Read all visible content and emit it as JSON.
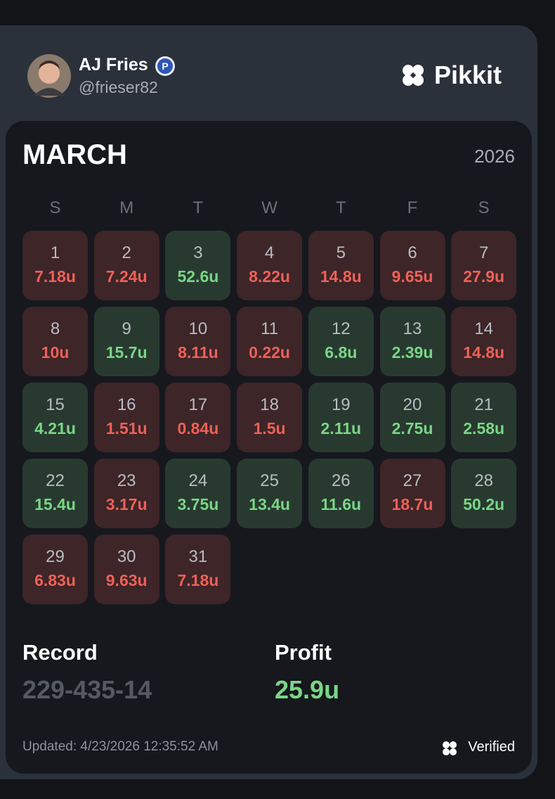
{
  "header": {
    "name": "AJ Fries",
    "handle": "@frieser82",
    "brand": "Pikkit"
  },
  "calendar": {
    "month": "MARCH",
    "year": "2026",
    "weekdays": [
      "S",
      "M",
      "T",
      "W",
      "T",
      "F",
      "S"
    ],
    "days": [
      {
        "day": 1,
        "amount": "7.18u",
        "color": "#ee6158"
      },
      {
        "day": 2,
        "amount": "7.24u",
        "color": "#ee6158"
      },
      {
        "day": 3,
        "amount": "52.6u",
        "color": "#7ad686"
      },
      {
        "day": 4,
        "amount": "8.22u",
        "color": "#ee6158"
      },
      {
        "day": 5,
        "amount": "14.8u",
        "color": "#ee6158"
      },
      {
        "day": 6,
        "amount": "9.65u",
        "color": "#ee6158"
      },
      {
        "day": 7,
        "amount": "27.9u",
        "color": "#ee6158"
      },
      {
        "day": 8,
        "amount": "10u",
        "color": "#ee6158"
      },
      {
        "day": 9,
        "amount": "15.7u",
        "color": "#7ad686"
      },
      {
        "day": 10,
        "amount": "8.11u",
        "color": "#ee6158"
      },
      {
        "day": 11,
        "amount": "0.22u",
        "color": "#ee6158"
      },
      {
        "day": 12,
        "amount": "6.8u",
        "color": "#7ad686"
      },
      {
        "day": 13,
        "amount": "2.39u",
        "color": "#7ad686"
      },
      {
        "day": 14,
        "amount": "14.8u",
        "color": "#ee6158"
      },
      {
        "day": 15,
        "amount": "4.21u",
        "color": "#7ad686"
      },
      {
        "day": 16,
        "amount": "1.51u",
        "color": "#ee6158"
      },
      {
        "day": 17,
        "amount": "0.84u",
        "color": "#ee6158"
      },
      {
        "day": 18,
        "amount": "1.5u",
        "color": "#ee6158"
      },
      {
        "day": 19,
        "amount": "2.11u",
        "color": "#7ad686"
      },
      {
        "day": 20,
        "amount": "2.75u",
        "color": "#7ad686"
      },
      {
        "day": 21,
        "amount": "2.58u",
        "color": "#7ad686"
      },
      {
        "day": 22,
        "amount": "15.4u",
        "color": "#7ad686"
      },
      {
        "day": 23,
        "amount": "3.17u",
        "color": "#ee6158"
      },
      {
        "day": 24,
        "amount": "3.75u",
        "color": "#7ad686"
      },
      {
        "day": 25,
        "amount": "13.4u",
        "color": "#7ad686"
      },
      {
        "day": 26,
        "amount": "11.6u",
        "color": "#7ad686"
      },
      {
        "day": 27,
        "amount": "18.7u",
        "color": "#ee6158"
      },
      {
        "day": 28,
        "amount": "50.2u",
        "color": "#7ad686"
      },
      {
        "day": 29,
        "amount": "6.83u",
        "color": "#ee6158"
      },
      {
        "day": 30,
        "amount": "9.63u",
        "color": "#ee6158"
      },
      {
        "day": 31,
        "amount": "7.18u",
        "color": "#ee6158"
      }
    ]
  },
  "summary": {
    "record_label": "Record",
    "record": "229-435-14",
    "profit_label": "Profit",
    "profit": "25.9u",
    "profit_color": "#7ad686"
  },
  "footer": {
    "updated": "Updated: 4/23/2026 12:35:52 AM",
    "verified": "Verified"
  }
}
